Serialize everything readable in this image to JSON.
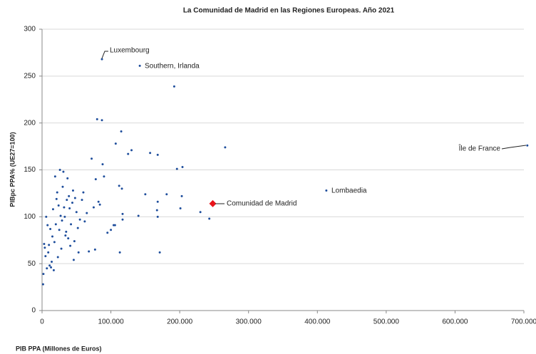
{
  "chart_data": {
    "type": "scatter",
    "title": "La Comunidad de Madrid en las Regiones Europeas. Año 2021",
    "x_label": "PIB PPA (Millones de Euros)",
    "y_label": "PIBpc PPA% (UE27=100)",
    "xlim": [
      0,
      700000
    ],
    "ylim": [
      0,
      300
    ],
    "xticks": [
      0,
      {
        "value": 100000,
        "label": "100.000"
      },
      {
        "value": 200000,
        "label": "200.000"
      },
      {
        "value": 300000,
        "label": "300.000"
      },
      {
        "value": 400000,
        "label": "400.000"
      },
      {
        "value": 500000,
        "label": "500.000"
      },
      {
        "value": 600000,
        "label": "600.000"
      },
      {
        "value": 700000,
        "label": "700.000"
      }
    ],
    "yticks": [
      0,
      50,
      100,
      150,
      200,
      250,
      300
    ],
    "grid": true,
    "series": [
      {
        "color": "#1f4e9c",
        "marker": "dot",
        "x": [
          87000,
          142000,
          705000,
          413000,
          192000,
          266000,
          196000,
          204000,
          157000,
          168000,
          107000,
          115000,
          80000,
          87000,
          130000,
          125000,
          150000,
          168000,
          181000,
          203000,
          201000,
          230000,
          243000,
          167000,
          168000,
          171000,
          113000,
          140000,
          117000,
          116000,
          112000,
          117000,
          100000,
          104000,
          106000,
          72000,
          78000,
          82000,
          84000,
          88000,
          90000,
          75000,
          77000,
          95000,
          60000,
          58000,
          55000,
          52000,
          50000,
          48000,
          45000,
          42000,
          40000,
          38000,
          36000,
          35000,
          33000,
          30000,
          28000,
          27000,
          25000,
          23000,
          22000,
          20000,
          19000,
          18000,
          16000,
          15000,
          14000,
          12000,
          11000,
          10000,
          9000,
          8000,
          7000,
          6000,
          5000,
          4000,
          3000,
          2000,
          1500,
          26000,
          31000,
          37000,
          44000,
          47000,
          53000,
          21000,
          17000,
          13000,
          24000,
          29000,
          34000,
          41000,
          46000,
          62000,
          65000,
          68000,
          39000,
          32000
        ],
        "values": [
          268,
          261,
          176,
          128,
          239,
          174,
          151,
          153,
          168,
          166,
          178,
          191,
          204,
          203,
          171,
          167,
          124,
          116,
          124,
          122,
          109,
          105,
          98,
          107,
          100,
          62,
          62,
          101,
          103,
          130,
          133,
          97,
          86,
          91,
          91,
          162,
          140,
          116,
          113,
          156,
          143,
          110,
          65,
          83,
          126,
          118,
          97,
          88,
          105,
          120,
          128,
          92,
          109,
          77,
          118,
          84,
          100,
          132,
          66,
          101,
          86,
          57,
          126,
          92,
          143,
          73,
          108,
          79,
          52,
          87,
          48,
          70,
          62,
          91,
          45,
          100,
          58,
          67,
          71,
          39,
          28,
          150,
          148,
          141,
          115,
          74,
          62,
          119,
          43,
          46,
          112,
          96,
          80,
          69,
          54,
          95,
          104,
          63,
          122,
          110
        ]
      },
      {
        "color": "#e8141a",
        "marker": "diamond",
        "x": [
          248000
        ],
        "values": [
          114
        ]
      }
    ],
    "annotations": [
      "Luxembourg",
      "Southern, Irlanda",
      "Île de France",
      "Lombaedia",
      "Comunidad de Madrid"
    ]
  }
}
